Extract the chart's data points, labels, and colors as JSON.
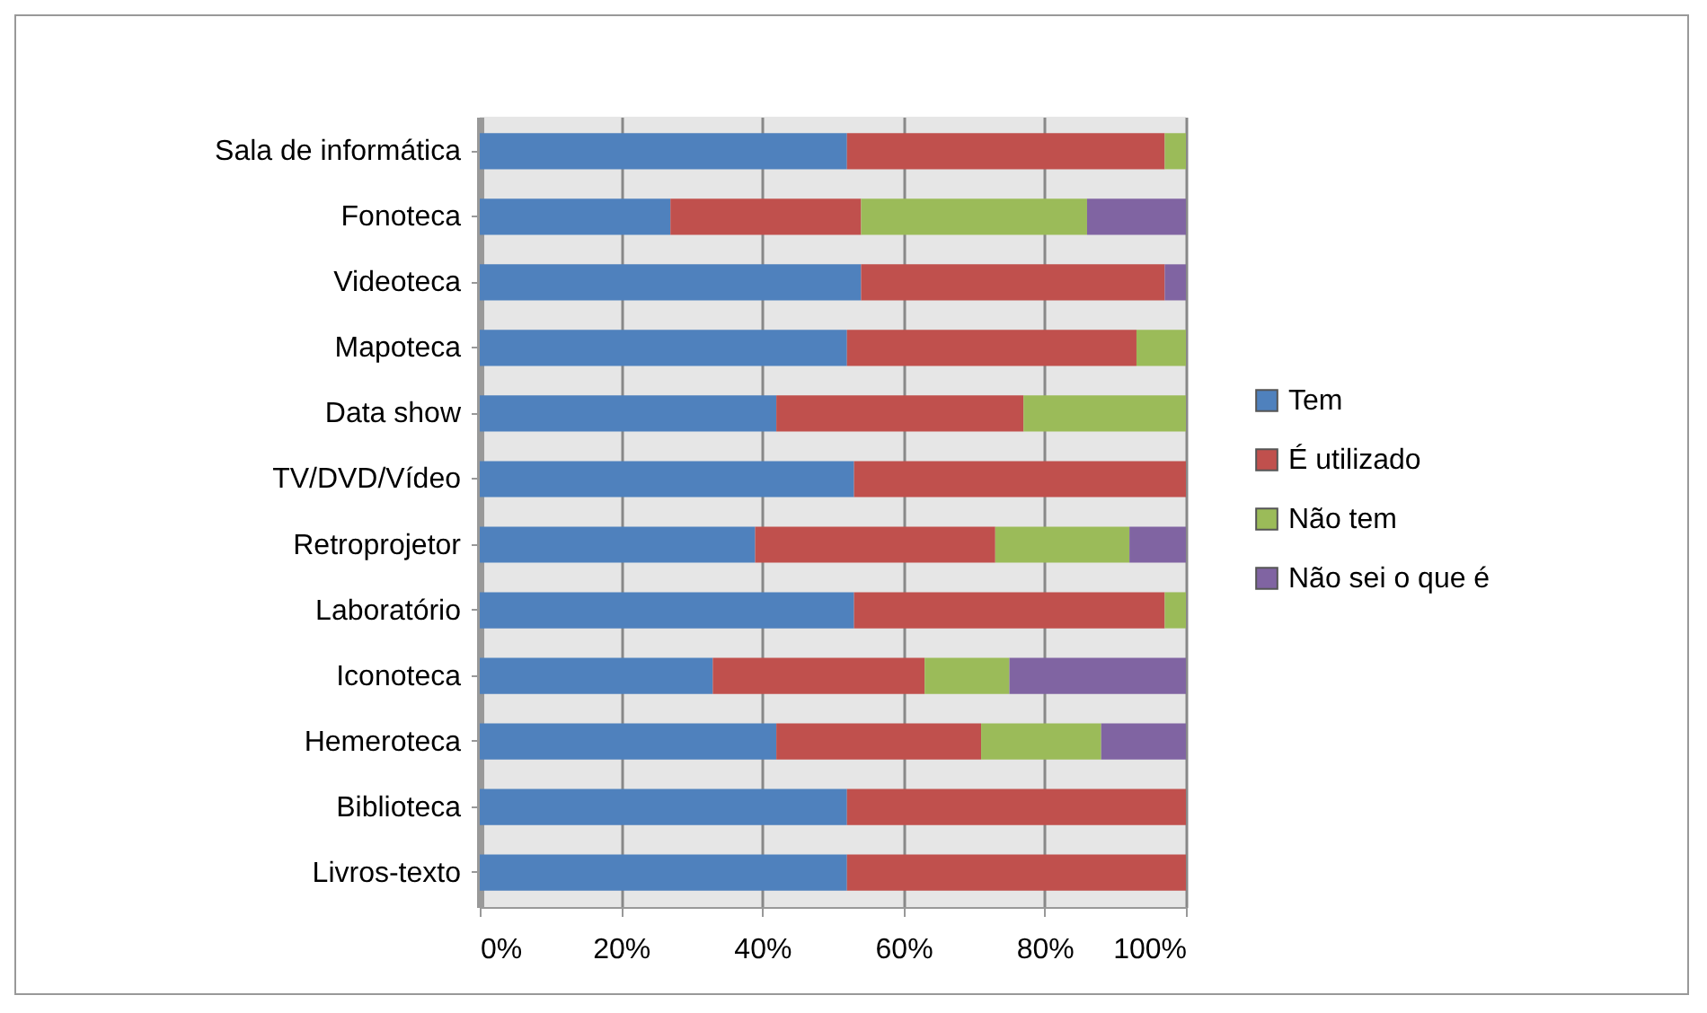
{
  "chart_data": {
    "type": "bar",
    "orientation": "horizontal",
    "stacked": true,
    "categories": [
      "Sala de informática",
      "Fonoteca",
      "Videoteca",
      "Mapoteca",
      "Data show",
      "TV/DVD/Vídeo",
      "Retroprojetor",
      "Laboratório",
      "Iconoteca",
      "Hemeroteca",
      "Biblioteca",
      "Livros-texto"
    ],
    "series": [
      {
        "name": "Tem",
        "color": "#4f81bd",
        "values": [
          52,
          27,
          54,
          52,
          42,
          53,
          39,
          53,
          33,
          42,
          52,
          52
        ]
      },
      {
        "name": "É utilizado",
        "color": "#c0504d",
        "values": [
          45,
          27,
          43,
          41,
          35,
          47,
          34,
          44,
          30,
          29,
          48,
          48
        ]
      },
      {
        "name": "Não tem",
        "color": "#9bbb59",
        "values": [
          3,
          32,
          0,
          7,
          23,
          0,
          19,
          3,
          12,
          17,
          0,
          0
        ]
      },
      {
        "name": "Não sei o que é",
        "color": "#8064a2",
        "values": [
          0,
          14,
          3,
          0,
          0,
          0,
          8,
          0,
          25,
          12,
          0,
          0
        ]
      }
    ],
    "xlim": [
      0,
      100
    ],
    "xticks": [
      {
        "value": 0,
        "label": "0%"
      },
      {
        "value": 20,
        "label": "20%"
      },
      {
        "value": 40,
        "label": "40%"
      },
      {
        "value": 60,
        "label": "60%"
      },
      {
        "value": 80,
        "label": "80%"
      },
      {
        "value": 100,
        "label": "100%"
      }
    ],
    "grid": "x",
    "legend": "right"
  }
}
